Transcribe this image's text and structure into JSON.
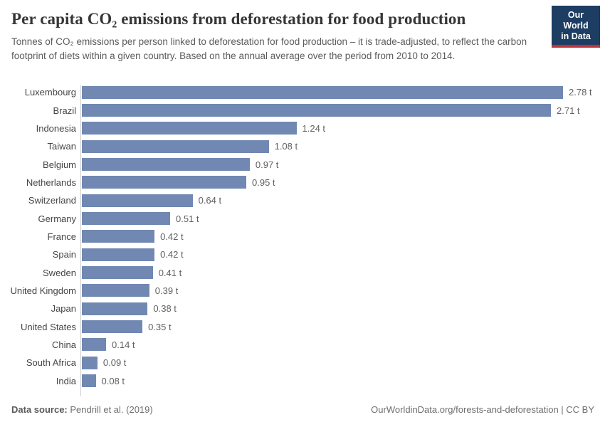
{
  "header": {
    "title": "Per capita CO₂ emissions from deforestation for food production",
    "subtitle": "Tonnes of CO₂ emissions per person linked to deforestation for food production – it is trade-adjusted, to reflect the carbon footprint of diets within a given country. Based on the annual average over the period from 2010 to 2014.",
    "logo": {
      "line1": "Our World",
      "line2": "in Data",
      "bg_color": "#1d3d63",
      "accent_color": "#c0313c"
    }
  },
  "chart_data": {
    "type": "bar",
    "orientation": "horizontal",
    "title": "Per capita CO₂ emissions from deforestation for food production",
    "categories": [
      "Luxembourg",
      "Brazil",
      "Indonesia",
      "Taiwan",
      "Belgium",
      "Netherlands",
      "Switzerland",
      "Germany",
      "France",
      "Spain",
      "Sweden",
      "United Kingdom",
      "Japan",
      "United States",
      "China",
      "South Africa",
      "India"
    ],
    "values": [
      2.78,
      2.71,
      1.24,
      1.08,
      0.97,
      0.95,
      0.64,
      0.51,
      0.42,
      0.42,
      0.41,
      0.39,
      0.38,
      0.35,
      0.14,
      0.09,
      0.08
    ],
    "value_labels": [
      "2.78 t",
      "2.71 t",
      "1.24 t",
      "1.08 t",
      "0.97 t",
      "0.95 t",
      "0.64 t",
      "0.51 t",
      "0.42 t",
      "0.42 t",
      "0.41 t",
      "0.39 t",
      "0.38 t",
      "0.35 t",
      "0.14 t",
      "0.09 t",
      "0.08 t"
    ],
    "unit": "t",
    "xlim": [
      0,
      2.78
    ],
    "grid": false,
    "legend": "none",
    "bar_color": "#7088b2",
    "axis_line_color": "#d0d0d0"
  },
  "footer": {
    "datasource_label": "Data source:",
    "datasource_value": "Pendrill et al. (2019)",
    "credit": "OurWorldinData.org/forests-and-deforestation | CC BY"
  }
}
